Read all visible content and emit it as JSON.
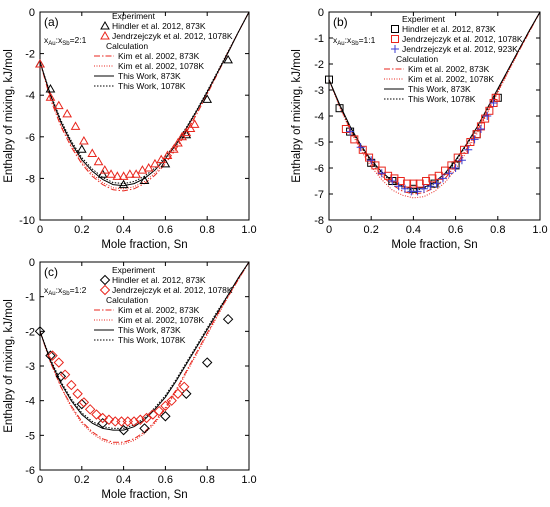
{
  "chart_data": [
    {
      "type": "scatter",
      "panel_label": "(a)",
      "composition_label": {
        "a": "x",
        "a_sub": "Au",
        "b": ":x",
        "b_sub": "Sb",
        "c": "=2:1"
      },
      "xlabel": "Mole fraction, Sn",
      "ylabel": "Enthalpy of mixing, kJ/mol",
      "xlim": [
        0,
        1
      ],
      "ylim": [
        -10,
        0
      ],
      "xticks": [
        "0",
        "0.2",
        "0.4",
        "0.6",
        "0.8",
        "1.0"
      ],
      "xtick_values": [
        0,
        0.2,
        0.4,
        0.6,
        0.8,
        1.0
      ],
      "yticks": [
        "0",
        "-2",
        "-4",
        "-6",
        "-8",
        "-10"
      ],
      "ytick_values": [
        0,
        -2,
        -4,
        -6,
        -8,
        -10
      ],
      "legend_experiment_title": "Experiment",
      "legend_calculation_title": "Calculation",
      "experiments": [
        {
          "name": "Hindler et al. 2012, 873K",
          "marker": "triangle",
          "color": "#000000",
          "x": [
            0.0,
            0.05,
            0.2,
            0.3,
            0.4,
            0.5,
            0.6,
            0.7,
            0.8,
            0.9
          ],
          "y": [
            -2.5,
            -3.7,
            -6.6,
            -7.8,
            -8.3,
            -8.1,
            -7.3,
            -5.9,
            -4.2,
            -2.3
          ]
        },
        {
          "name": "Jendrzejczyk et al. 2012, 1078K",
          "marker": "triangle",
          "color": "#e8251c",
          "x": [
            0.0,
            0.05,
            0.09,
            0.13,
            0.17,
            0.21,
            0.25,
            0.28,
            0.31,
            0.34,
            0.37,
            0.4,
            0.43,
            0.46,
            0.49,
            0.52,
            0.55,
            0.58,
            0.61,
            0.64,
            0.66,
            0.68,
            0.7,
            0.72,
            0.74
          ],
          "y": [
            -2.5,
            -4.1,
            -4.5,
            -4.9,
            -5.5,
            -6.2,
            -6.8,
            -7.2,
            -7.6,
            -7.8,
            -7.9,
            -7.9,
            -7.8,
            -7.8,
            -7.6,
            -7.5,
            -7.3,
            -7.1,
            -6.9,
            -6.6,
            -6.3,
            -6.0,
            -5.8,
            -5.6,
            -5.4
          ]
        }
      ],
      "calculations": [
        {
          "name": "Kim et al. 2002, 873K",
          "dash": "6,2,1.5,2",
          "color": "#e8251c",
          "x": [
            0,
            0.05,
            0.1,
            0.15,
            0.2,
            0.25,
            0.3,
            0.35,
            0.4,
            0.45,
            0.5,
            0.55,
            0.6,
            0.65,
            0.7,
            0.75,
            0.8,
            0.85,
            0.9,
            0.95,
            1.0
          ],
          "y": [
            -2.4,
            -4.2,
            -5.5,
            -6.5,
            -7.3,
            -7.9,
            -8.3,
            -8.55,
            -8.6,
            -8.5,
            -8.25,
            -7.85,
            -7.3,
            -6.6,
            -5.8,
            -4.9,
            -3.95,
            -2.95,
            -1.95,
            -0.95,
            0
          ]
        },
        {
          "name": "Kim et al. 2002, 1078K",
          "dash": "1,1.5",
          "color": "#e8251c",
          "x": [
            0,
            0.05,
            0.1,
            0.15,
            0.2,
            0.25,
            0.3,
            0.35,
            0.4,
            0.45,
            0.5,
            0.55,
            0.6,
            0.65,
            0.7,
            0.75,
            0.8,
            0.85,
            0.9,
            0.95,
            1.0
          ],
          "y": [
            -2.4,
            -4.1,
            -5.4,
            -6.4,
            -7.2,
            -7.8,
            -8.2,
            -8.45,
            -8.5,
            -8.4,
            -8.15,
            -7.75,
            -7.2,
            -6.5,
            -5.7,
            -4.8,
            -3.9,
            -2.9,
            -1.9,
            -0.95,
            0
          ]
        },
        {
          "name": "This Work, 873K",
          "dash": "",
          "color": "#000000",
          "x": [
            0,
            0.05,
            0.1,
            0.15,
            0.2,
            0.25,
            0.3,
            0.35,
            0.4,
            0.45,
            0.5,
            0.55,
            0.6,
            0.65,
            0.7,
            0.75,
            0.8,
            0.85,
            0.9,
            0.95,
            1.0
          ],
          "y": [
            -2.4,
            -4.0,
            -5.3,
            -6.3,
            -7.1,
            -7.65,
            -8.05,
            -8.3,
            -8.35,
            -8.25,
            -8.0,
            -7.6,
            -7.05,
            -6.4,
            -5.6,
            -4.75,
            -3.85,
            -2.9,
            -1.95,
            -0.95,
            0
          ]
        },
        {
          "name": "This Work, 1078K",
          "dash": "1.5,1.5",
          "color": "#000000",
          "x": [
            0,
            0.05,
            0.1,
            0.15,
            0.2,
            0.25,
            0.3,
            0.35,
            0.4,
            0.45,
            0.5,
            0.55,
            0.6,
            0.65,
            0.7,
            0.75,
            0.8,
            0.85,
            0.9,
            0.95,
            1.0
          ],
          "y": [
            -2.4,
            -3.95,
            -5.2,
            -6.2,
            -7.0,
            -7.55,
            -7.95,
            -8.2,
            -8.25,
            -8.15,
            -7.9,
            -7.5,
            -6.95,
            -6.3,
            -5.55,
            -4.7,
            -3.8,
            -2.85,
            -1.9,
            -0.95,
            0
          ]
        }
      ]
    },
    {
      "type": "scatter",
      "panel_label": "(b)",
      "composition_label": {
        "a": "x",
        "a_sub": "Au",
        "b": ":x",
        "b_sub": "Sb",
        "c": "=1:1"
      },
      "xlabel": "Mole fraction, Sn",
      "ylabel": "Enthalpy of mixing, kJ/mol",
      "xlim": [
        0,
        1
      ],
      "ylim": [
        -8,
        0
      ],
      "xticks": [
        "0",
        "0.2",
        "0.4",
        "0.6",
        "0.8",
        "1.0"
      ],
      "xtick_values": [
        0,
        0.2,
        0.4,
        0.6,
        0.8,
        1.0
      ],
      "yticks": [
        "0",
        "-1",
        "-2",
        "-3",
        "-4",
        "-5",
        "-6",
        "-7",
        "-8"
      ],
      "ytick_values": [
        0,
        -1,
        -2,
        -3,
        -4,
        -5,
        -6,
        -7,
        -8
      ],
      "legend_experiment_title": "Experiment",
      "legend_calculation_title": "Calculation",
      "experiments": [
        {
          "name": "Hindler et al. 2012, 873K",
          "marker": "square",
          "color": "#000000",
          "x": [
            0.0,
            0.05,
            0.1,
            0.2,
            0.3,
            0.4,
            0.5,
            0.6,
            0.7,
            0.8
          ],
          "y": [
            -2.6,
            -3.7,
            -4.6,
            -5.8,
            -6.5,
            -6.8,
            -6.6,
            -5.9,
            -4.7,
            -3.3
          ]
        },
        {
          "name": "Jendrzejczyk et al. 2012, 1078K",
          "marker": "square",
          "color": "#e8251c",
          "x": [
            0.08,
            0.12,
            0.16,
            0.19,
            0.22,
            0.25,
            0.28,
            0.31,
            0.34,
            0.37,
            0.4,
            0.43,
            0.46,
            0.49,
            0.52,
            0.55,
            0.58,
            0.61,
            0.64,
            0.67,
            0.7,
            0.72,
            0.74,
            0.76,
            0.78,
            0.79
          ],
          "y": [
            -4.5,
            -4.9,
            -5.3,
            -5.6,
            -5.9,
            -6.1,
            -6.3,
            -6.4,
            -6.5,
            -6.6,
            -6.6,
            -6.6,
            -6.5,
            -6.4,
            -6.3,
            -6.1,
            -5.9,
            -5.6,
            -5.3,
            -5.0,
            -4.7,
            -4.4,
            -4.1,
            -3.8,
            -3.5,
            -3.3
          ]
        },
        {
          "name": "Jendrzejczyk et al. 2012, 923K",
          "marker": "plus",
          "color": "#3b3bd1",
          "x": [
            0.1,
            0.15,
            0.2,
            0.25,
            0.3,
            0.33,
            0.36,
            0.39,
            0.42,
            0.45,
            0.48,
            0.51,
            0.54,
            0.57,
            0.6,
            0.63,
            0.66,
            0.69,
            0.72,
            0.75,
            0.78
          ],
          "y": [
            -4.6,
            -5.2,
            -5.7,
            -6.2,
            -6.5,
            -6.7,
            -6.8,
            -6.9,
            -6.9,
            -6.8,
            -6.7,
            -6.6,
            -6.4,
            -6.2,
            -6.0,
            -5.7,
            -5.3,
            -4.9,
            -4.5,
            -4.0,
            -3.5
          ]
        }
      ],
      "calculations": [
        {
          "name": "Kim et al. 2002, 873K",
          "dash": "6,2,1.5,2",
          "color": "#e8251c",
          "x": [
            0,
            0.05,
            0.1,
            0.15,
            0.2,
            0.25,
            0.3,
            0.35,
            0.4,
            0.45,
            0.5,
            0.55,
            0.6,
            0.65,
            0.7,
            0.75,
            0.8,
            0.85,
            0.9,
            0.95,
            1.0
          ],
          "y": [
            -2.6,
            -3.6,
            -4.5,
            -5.2,
            -5.8,
            -6.3,
            -6.65,
            -6.9,
            -7.0,
            -6.95,
            -6.75,
            -6.4,
            -5.9,
            -5.3,
            -4.6,
            -3.85,
            -3.05,
            -2.25,
            -1.5,
            -0.75,
            0
          ]
        },
        {
          "name": "Kim et al. 2002, 1078K",
          "dash": "1,1.5",
          "color": "#e8251c",
          "x": [
            0,
            0.05,
            0.1,
            0.15,
            0.2,
            0.25,
            0.3,
            0.35,
            0.4,
            0.45,
            0.5,
            0.55,
            0.6,
            0.65,
            0.7,
            0.75,
            0.8,
            0.85,
            0.9,
            0.95,
            1.0
          ],
          "y": [
            -2.6,
            -3.65,
            -4.55,
            -5.3,
            -5.95,
            -6.45,
            -6.85,
            -7.05,
            -7.15,
            -7.1,
            -6.9,
            -6.55,
            -6.05,
            -5.4,
            -4.7,
            -3.9,
            -3.1,
            -2.3,
            -1.5,
            -0.75,
            0
          ]
        },
        {
          "name": "This Work, 873K",
          "dash": "",
          "color": "#000000",
          "x": [
            0,
            0.05,
            0.1,
            0.15,
            0.2,
            0.25,
            0.3,
            0.35,
            0.4,
            0.45,
            0.5,
            0.55,
            0.6,
            0.65,
            0.7,
            0.75,
            0.8,
            0.85,
            0.9,
            0.95,
            1.0
          ],
          "y": [
            -2.6,
            -3.55,
            -4.4,
            -5.1,
            -5.7,
            -6.15,
            -6.5,
            -6.7,
            -6.8,
            -6.75,
            -6.55,
            -6.2,
            -5.7,
            -5.1,
            -4.45,
            -3.7,
            -2.95,
            -2.2,
            -1.45,
            -0.7,
            0
          ]
        },
        {
          "name": "This Work, 1078K",
          "dash": "1.5,1.5",
          "color": "#000000",
          "x": [
            0,
            0.05,
            0.1,
            0.15,
            0.2,
            0.25,
            0.3,
            0.35,
            0.4,
            0.45,
            0.5,
            0.55,
            0.6,
            0.65,
            0.7,
            0.75,
            0.8,
            0.85,
            0.9,
            0.95,
            1.0
          ],
          "y": [
            -2.6,
            -3.6,
            -4.45,
            -5.15,
            -5.75,
            -6.2,
            -6.55,
            -6.75,
            -6.85,
            -6.8,
            -6.6,
            -6.25,
            -5.75,
            -5.15,
            -4.5,
            -3.75,
            -3.0,
            -2.2,
            -1.45,
            -0.7,
            0
          ]
        }
      ]
    },
    {
      "type": "scatter",
      "panel_label": "(c)",
      "composition_label": {
        "a": "x",
        "a_sub": "Au",
        "b": ":x",
        "b_sub": "Sb",
        "c": "=1:2"
      },
      "xlabel": "Mole fraction, Sn",
      "ylabel": "Enthalpy of mixing, kJ/mol",
      "xlim": [
        0,
        1
      ],
      "ylim": [
        -6,
        0
      ],
      "xticks": [
        "0",
        "0.2",
        "0.4",
        "0.6",
        "0.8",
        "1.0"
      ],
      "xtick_values": [
        0,
        0.2,
        0.4,
        0.6,
        0.8,
        1.0
      ],
      "yticks": [
        "0",
        "-1",
        "-2",
        "-3",
        "-4",
        "-5",
        "-6"
      ],
      "ytick_values": [
        0,
        -1,
        -2,
        -3,
        -4,
        -5,
        -6
      ],
      "legend_experiment_title": "Experiment",
      "legend_calculation_title": "Calculation",
      "experiments": [
        {
          "name": "Hindler et al. 2012, 873K",
          "marker": "diamond",
          "color": "#000000",
          "x": [
            0.0,
            0.05,
            0.1,
            0.2,
            0.3,
            0.4,
            0.5,
            0.6,
            0.7,
            0.8,
            0.9
          ],
          "y": [
            -2.0,
            -2.7,
            -3.3,
            -4.1,
            -4.65,
            -4.85,
            -4.8,
            -4.45,
            -3.8,
            -2.9,
            -1.65
          ]
        },
        {
          "name": "Jendrzejczyk et al. 2012, 1078K",
          "marker": "diamond",
          "color": "#e8251c",
          "x": [
            0.06,
            0.09,
            0.12,
            0.15,
            0.18,
            0.21,
            0.24,
            0.27,
            0.3,
            0.33,
            0.36,
            0.39,
            0.42,
            0.45,
            0.48,
            0.51,
            0.54,
            0.57,
            0.6,
            0.63,
            0.66,
            0.69
          ],
          "y": [
            -2.7,
            -2.9,
            -3.25,
            -3.55,
            -3.8,
            -4.05,
            -4.25,
            -4.4,
            -4.5,
            -4.55,
            -4.6,
            -4.6,
            -4.6,
            -4.6,
            -4.55,
            -4.5,
            -4.4,
            -4.3,
            -4.15,
            -4.0,
            -3.8,
            -3.6
          ]
        }
      ],
      "calculations": [
        {
          "name": "Kim et al. 2002, 873K",
          "dash": "6,2,1.5,2",
          "color": "#e8251c",
          "x": [
            0,
            0.05,
            0.1,
            0.15,
            0.2,
            0.25,
            0.3,
            0.35,
            0.4,
            0.45,
            0.5,
            0.55,
            0.6,
            0.65,
            0.7,
            0.75,
            0.8,
            0.85,
            0.9,
            0.95,
            1.0
          ],
          "y": [
            -2.0,
            -2.9,
            -3.6,
            -4.15,
            -4.6,
            -4.9,
            -5.1,
            -5.2,
            -5.2,
            -5.1,
            -4.9,
            -4.6,
            -4.2,
            -3.7,
            -3.15,
            -2.6,
            -2.05,
            -1.5,
            -1.0,
            -0.5,
            0
          ]
        },
        {
          "name": "Kim et al. 2002, 1078K",
          "dash": "1,1.5",
          "color": "#e8251c",
          "x": [
            0,
            0.05,
            0.1,
            0.15,
            0.2,
            0.25,
            0.3,
            0.35,
            0.4,
            0.45,
            0.5,
            0.55,
            0.6,
            0.65,
            0.7,
            0.75,
            0.8,
            0.85,
            0.9,
            0.95,
            1.0
          ],
          "y": [
            -2.0,
            -2.9,
            -3.6,
            -4.2,
            -4.65,
            -4.95,
            -5.15,
            -5.25,
            -5.25,
            -5.15,
            -4.95,
            -4.65,
            -4.25,
            -3.75,
            -3.2,
            -2.65,
            -2.1,
            -1.55,
            -1.0,
            -0.5,
            0
          ]
        },
        {
          "name": "This Work, 873K",
          "dash": "",
          "color": "#000000",
          "x": [
            0,
            0.05,
            0.1,
            0.15,
            0.2,
            0.25,
            0.3,
            0.35,
            0.4,
            0.45,
            0.5,
            0.55,
            0.6,
            0.65,
            0.7,
            0.75,
            0.8,
            0.85,
            0.9,
            0.95,
            1.0
          ],
          "y": [
            -2.0,
            -2.85,
            -3.5,
            -4.0,
            -4.4,
            -4.65,
            -4.8,
            -4.85,
            -4.85,
            -4.75,
            -4.55,
            -4.25,
            -3.9,
            -3.45,
            -2.95,
            -2.45,
            -1.95,
            -1.45,
            -0.95,
            -0.45,
            0
          ]
        },
        {
          "name": "This Work, 1078K",
          "dash": "1.5,1.5",
          "color": "#000000",
          "x": [
            0,
            0.05,
            0.1,
            0.15,
            0.2,
            0.25,
            0.3,
            0.35,
            0.4,
            0.45,
            0.5,
            0.55,
            0.6,
            0.65,
            0.7,
            0.75,
            0.8,
            0.85,
            0.9,
            0.95,
            1.0
          ],
          "y": [
            -2.0,
            -2.8,
            -3.45,
            -3.95,
            -4.35,
            -4.6,
            -4.75,
            -4.8,
            -4.8,
            -4.7,
            -4.5,
            -4.2,
            -3.85,
            -3.4,
            -2.9,
            -2.4,
            -1.9,
            -1.4,
            -0.95,
            -0.45,
            0
          ]
        }
      ]
    }
  ]
}
